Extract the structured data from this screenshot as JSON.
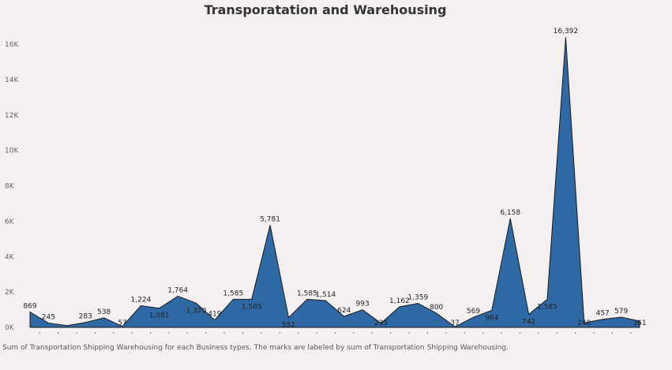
{
  "chart_data": {
    "type": "area",
    "title": "Transporatation and Warehousing",
    "caption": "Sum of Transportation Shipping Warehousing for each Business types.  The marks are labeled by sum of Transportation Shipping Warehousing.",
    "ylim": [
      0,
      17000
    ],
    "yticks": [
      0,
      2000,
      4000,
      6000,
      8000,
      10000,
      12000,
      14000,
      16000
    ],
    "ytick_labels": [
      "0K",
      "2K",
      "4K",
      "6K",
      "8K",
      "10K",
      "12K",
      "14K",
      "16K"
    ],
    "grid": false,
    "fill_color": "#2e69a5",
    "series": [
      {
        "values": [
          869,
          245,
          100,
          283,
          538,
          57,
          1224,
          1081,
          1764,
          1370,
          419,
          1585,
          1585,
          5781,
          552,
          1585,
          1514,
          624,
          993,
          235,
          1162,
          1359,
          800,
          37,
          569,
          964,
          6158,
          742,
          1585,
          16392,
          248,
          457,
          579,
          361
        ],
        "labels": [
          "869",
          "245",
          "",
          "283",
          "538",
          "57",
          "1,224",
          "1,081",
          "1,764",
          "1,370",
          "419",
          "1,585",
          "1,585",
          "5,781",
          "552",
          "1,585",
          "1,514",
          "624",
          "993",
          "235",
          "1,162",
          "1,359",
          "800",
          "37",
          "569",
          "964",
          "6,158",
          "742",
          "1,585",
          "16,392",
          "248",
          "457",
          "579",
          "361"
        ]
      }
    ]
  }
}
